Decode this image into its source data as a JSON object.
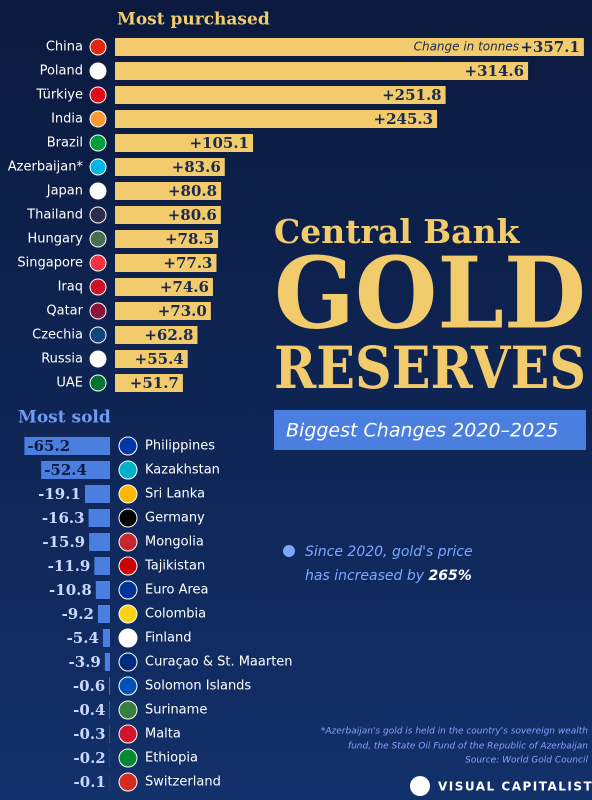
{
  "chart_data": [
    {
      "type": "bar",
      "title": "Most purchased",
      "unit_label": "Change in tonnes",
      "color": "#f2cb6c",
      "categories": [
        "China",
        "Poland",
        "Türkiye",
        "India",
        "Brazil",
        "Azerbaijan*",
        "Japan",
        "Thailand",
        "Hungary",
        "Singapore",
        "Iraq",
        "Qatar",
        "Czechia",
        "Russia",
        "UAE"
      ],
      "values": [
        357.1,
        314.6,
        251.8,
        245.3,
        105.1,
        83.6,
        80.8,
        80.6,
        78.5,
        77.3,
        74.6,
        73.0,
        62.8,
        55.4,
        51.7
      ],
      "value_labels": [
        "+357.1",
        "+314.6",
        "+251.8",
        "+245.3",
        "+105.1",
        "+83.6",
        "+80.8",
        "+80.6",
        "+78.5",
        "+77.3",
        "+74.6",
        "+73.0",
        "+62.8",
        "+55.4",
        "+51.7"
      ]
    },
    {
      "type": "bar",
      "title": "Most sold",
      "color": "#4a7fe0",
      "categories": [
        "Philippines",
        "Kazakhstan",
        "Sri Lanka",
        "Germany",
        "Mongolia",
        "Tajikistan",
        "Euro Area",
        "Colombia",
        "Finland",
        "Curaçao & St. Maarten",
        "Solomon Islands",
        "Suriname",
        "Malta",
        "Ethiopia",
        "Switzerland"
      ],
      "values": [
        -65.2,
        -52.4,
        -19.1,
        -16.3,
        -15.9,
        -11.9,
        -10.8,
        -9.2,
        -5.4,
        -3.9,
        -0.6,
        -0.4,
        -0.3,
        -0.2,
        -0.1
      ]
    }
  ],
  "header": {
    "line1": "Central Bank",
    "line2": "GOLD",
    "line3": "RESERVES",
    "subtitle": "Biggest Changes 2020–2025"
  },
  "annotation": {
    "line1": "Since 2020, gold's price",
    "line2": "has increased by ",
    "highlight": "265%"
  },
  "footnote": [
    "*Azerbaijan's gold is held in the country's sovereign wealth",
    "fund, the State Oil Fund of the Republic of Azerbaijan",
    "Source: World Gold Council"
  ],
  "brand": "VISUAL CAPITALIST"
}
